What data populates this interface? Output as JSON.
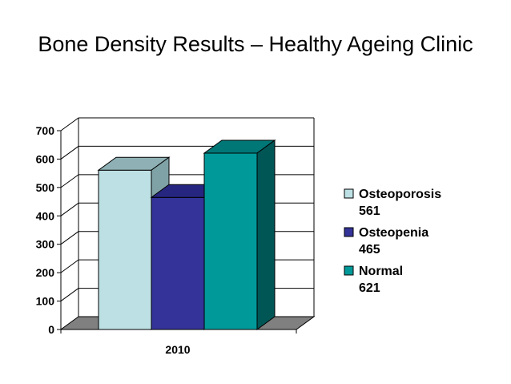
{
  "chart_data": {
    "type": "bar",
    "title": "Bone Density Results – Healthy Ageing Clinic",
    "categories": [
      "2010"
    ],
    "series": [
      {
        "name": "Osteoporosis",
        "values": [
          561
        ],
        "value_label": "561",
        "color": "#bde0e4",
        "side_color": "#7fa2a6",
        "top_color": "#8fb1b5"
      },
      {
        "name": "Osteopenia",
        "values": [
          465
        ],
        "value_label": "465",
        "color": "#333399",
        "side_color": "#20206a",
        "top_color": "#262680"
      },
      {
        "name": "Normal",
        "values": [
          621
        ],
        "value_label": "621",
        "color": "#009999",
        "side_color": "#005555",
        "top_color": "#007777"
      }
    ],
    "ylim": [
      0,
      700
    ],
    "yticks": [
      0,
      100,
      200,
      300,
      400,
      500,
      600,
      700
    ],
    "ytick_labels": [
      "0",
      "100",
      "200",
      "300",
      "400",
      "500",
      "600",
      "700"
    ],
    "xlabel": "",
    "ylabel": "",
    "grid": true,
    "legend_position": "right",
    "floor_color": "#808080"
  }
}
